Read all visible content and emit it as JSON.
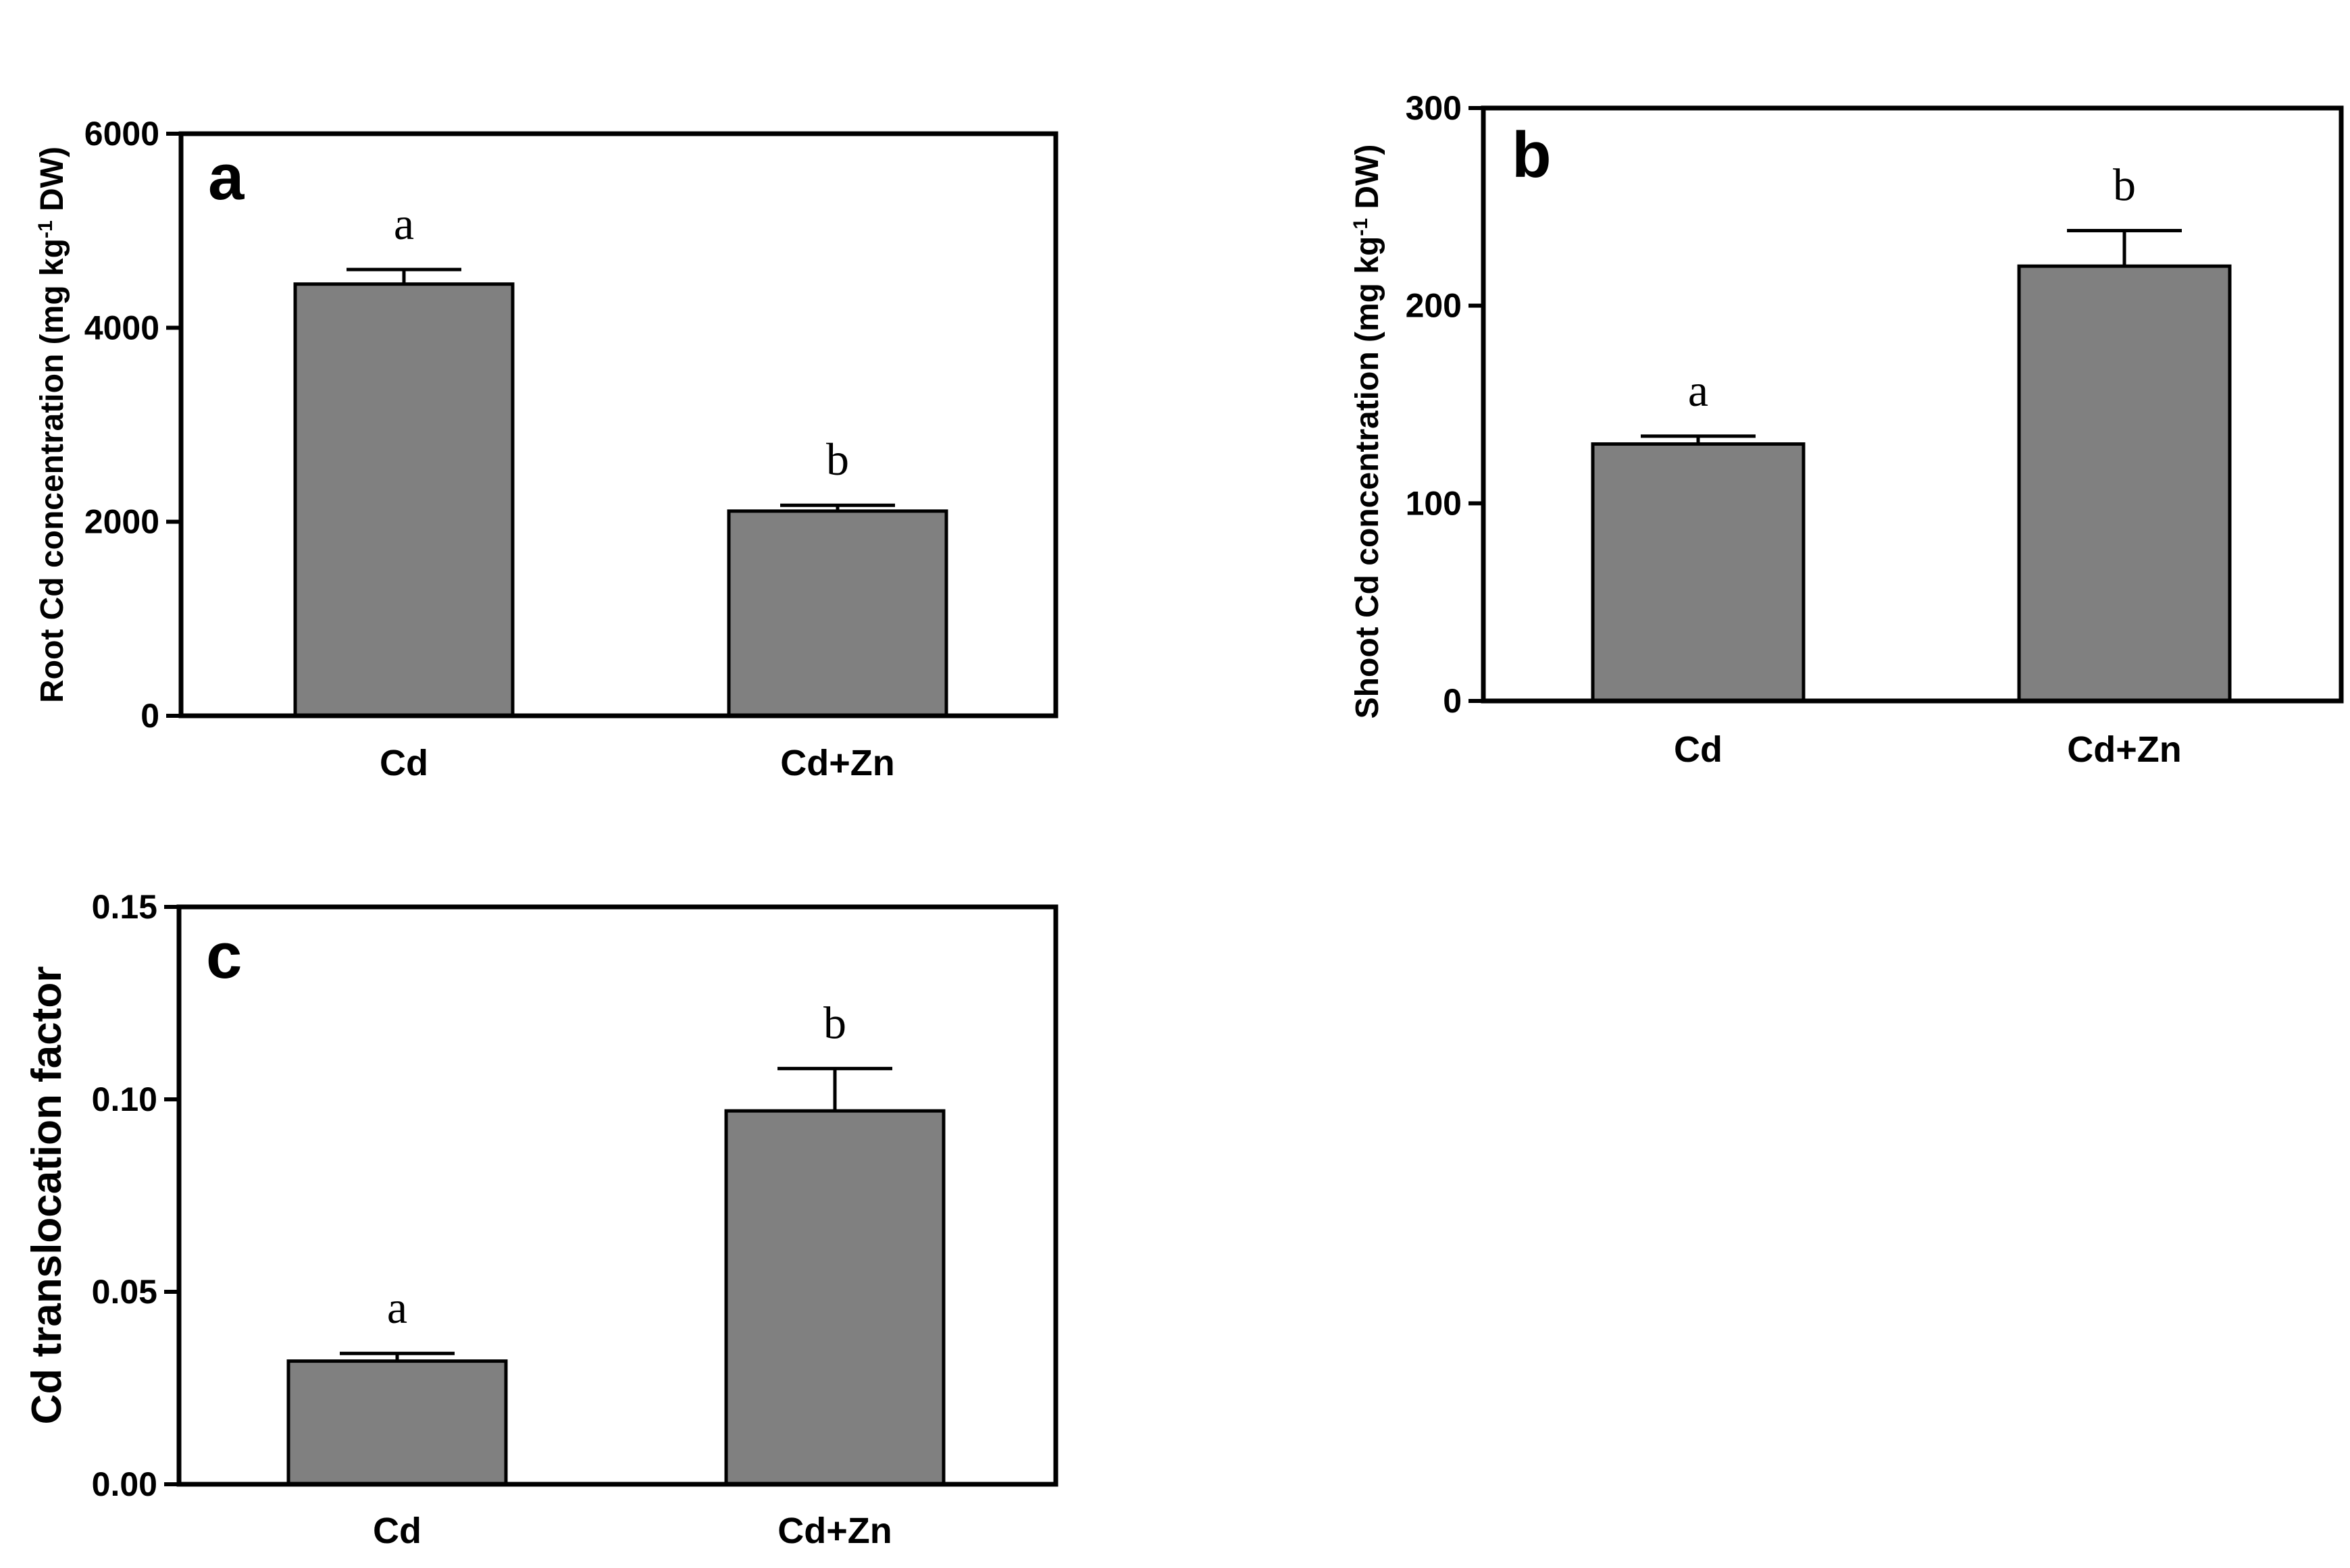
{
  "chart_data": [
    {
      "id": "a",
      "type": "bar",
      "panel_label": "a",
      "ylabel_parts": [
        "Root Cd concentration (mg kg",
        "-1",
        " DW)"
      ],
      "categories": [
        "Cd",
        "Cd+Zn"
      ],
      "values": [
        4450,
        2110
      ],
      "errors": [
        150,
        60
      ],
      "significance": [
        "a",
        "b"
      ],
      "ylim": [
        0,
        6000
      ],
      "yticks": [
        0,
        2000,
        4000,
        6000
      ],
      "ytick_labels": [
        "0",
        "2000",
        "4000",
        "6000"
      ],
      "bar_color": "#808080"
    },
    {
      "id": "b",
      "type": "bar",
      "panel_label": "b",
      "ylabel_parts": [
        "Shoot Cd concentration (mg kg",
        "-1",
        " DW)"
      ],
      "categories": [
        "Cd",
        "Cd+Zn"
      ],
      "values": [
        130,
        220
      ],
      "errors": [
        4,
        18
      ],
      "significance": [
        "a",
        "b"
      ],
      "ylim": [
        0,
        300
      ],
      "yticks": [
        0,
        100,
        200,
        300
      ],
      "ytick_labels": [
        "0",
        "100",
        "200",
        "300"
      ],
      "bar_color": "#808080"
    },
    {
      "id": "c",
      "type": "bar",
      "panel_label": "c",
      "ylabel_parts": [
        "Cd translocation factor"
      ],
      "categories": [
        "Cd",
        "Cd+Zn"
      ],
      "values": [
        0.032,
        0.097
      ],
      "errors": [
        0.002,
        0.011
      ],
      "significance": [
        "a",
        "b"
      ],
      "ylim": [
        0,
        0.15
      ],
      "yticks": [
        0,
        0.05,
        0.1,
        0.15
      ],
      "ytick_labels": [
        "0.00",
        "0.05",
        "0.10",
        "0.15"
      ],
      "bar_color": "#808080"
    }
  ]
}
